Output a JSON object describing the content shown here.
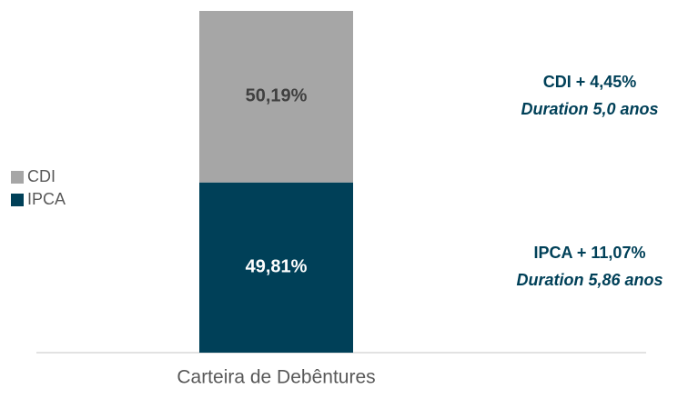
{
  "chart_data": {
    "type": "stacked_bar",
    "categories": [
      "Carteira de Debêntures"
    ],
    "series": [
      {
        "name": "IPCA",
        "color": "#004058",
        "values": [
          49.81
        ],
        "value_labels": [
          "49,81%"
        ]
      },
      {
        "name": "CDI",
        "color": "#a6a6a6",
        "values": [
          50.19
        ],
        "value_labels": [
          "50,19%"
        ]
      }
    ],
    "ylim": [
      0,
      100
    ],
    "legend": "left",
    "annotations": [
      {
        "lines": [
          "IPCA + 11,07%",
          "Duration 5,86 anos"
        ]
      },
      {
        "lines": [
          "CDI + 4,45%",
          "Duration 5,0 anos"
        ]
      }
    ]
  }
}
